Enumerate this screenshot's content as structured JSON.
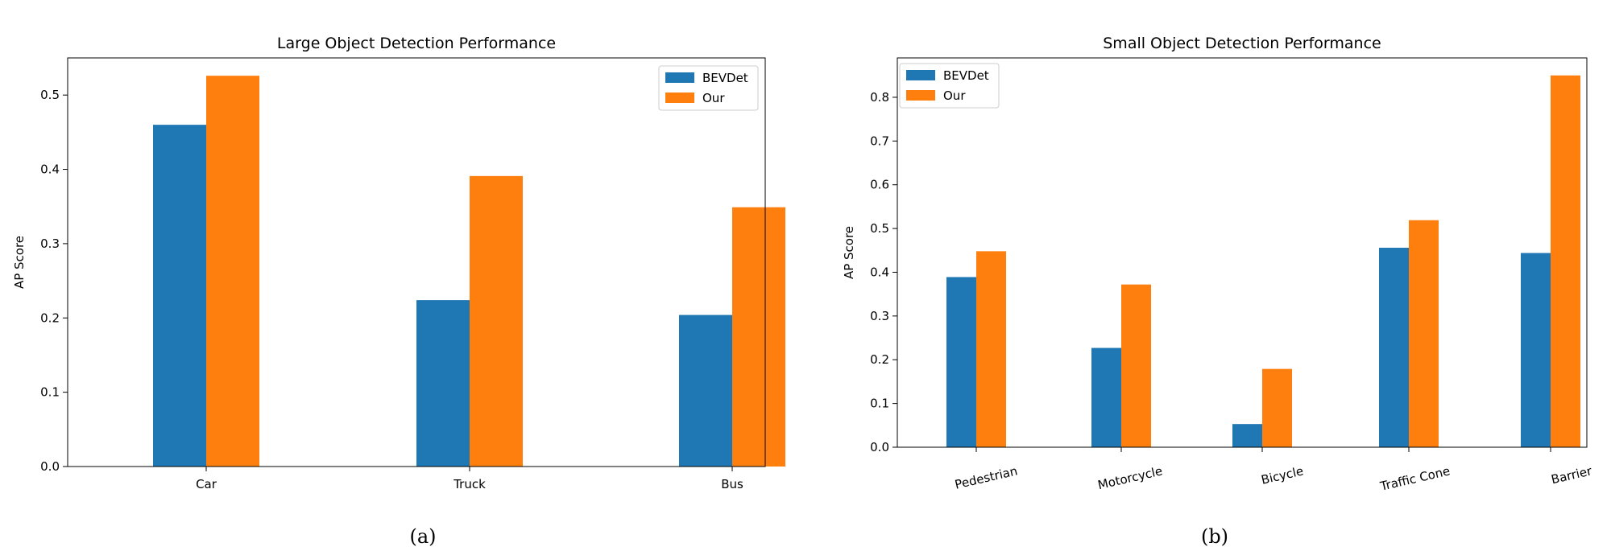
{
  "chart_data": [
    {
      "type": "bar",
      "title": "Large Object Detection Performance",
      "xlabel": "",
      "ylabel": "AP Score",
      "categories": [
        "Car",
        "Truck",
        "Bus"
      ],
      "series": [
        {
          "name": "BEVDet",
          "color": "#1f77b4",
          "values": [
            0.46,
            0.224,
            0.204
          ]
        },
        {
          "name": "Our",
          "color": "#ff7f0e",
          "values": [
            0.526,
            0.391,
            0.349
          ]
        }
      ],
      "ylim": [
        0,
        0.55
      ],
      "yticks": [
        0.0,
        0.1,
        0.2,
        0.3,
        0.4,
        0.5
      ],
      "ytick_labels": [
        "0.0",
        "0.1",
        "0.2",
        "0.3",
        "0.4",
        "0.5"
      ],
      "legend_position": "top-right",
      "caption": "(a)"
    },
    {
      "type": "bar",
      "title": "Small Object Detection Performance",
      "xlabel": "",
      "ylabel": "AP Score",
      "categories": [
        "Pedestrian",
        "Motorcycle",
        "Bicycle",
        "Traffic Cone",
        "Barrier"
      ],
      "series": [
        {
          "name": "BEVDet",
          "color": "#1f77b4",
          "values": [
            0.389,
            0.227,
            0.053,
            0.456,
            0.444
          ]
        },
        {
          "name": "Our",
          "color": "#ff7f0e",
          "values": [
            0.448,
            0.372,
            0.179,
            0.519,
            0.85
          ]
        }
      ],
      "ylim": [
        0,
        0.89
      ],
      "yticks": [
        0.0,
        0.1,
        0.2,
        0.3,
        0.4,
        0.5,
        0.6,
        0.7,
        0.8
      ],
      "ytick_labels": [
        "0.0",
        "0.1",
        "0.2",
        "0.3",
        "0.4",
        "0.5",
        "0.6",
        "0.7",
        "0.8"
      ],
      "legend_position": "top-left",
      "caption": "(b)"
    }
  ]
}
